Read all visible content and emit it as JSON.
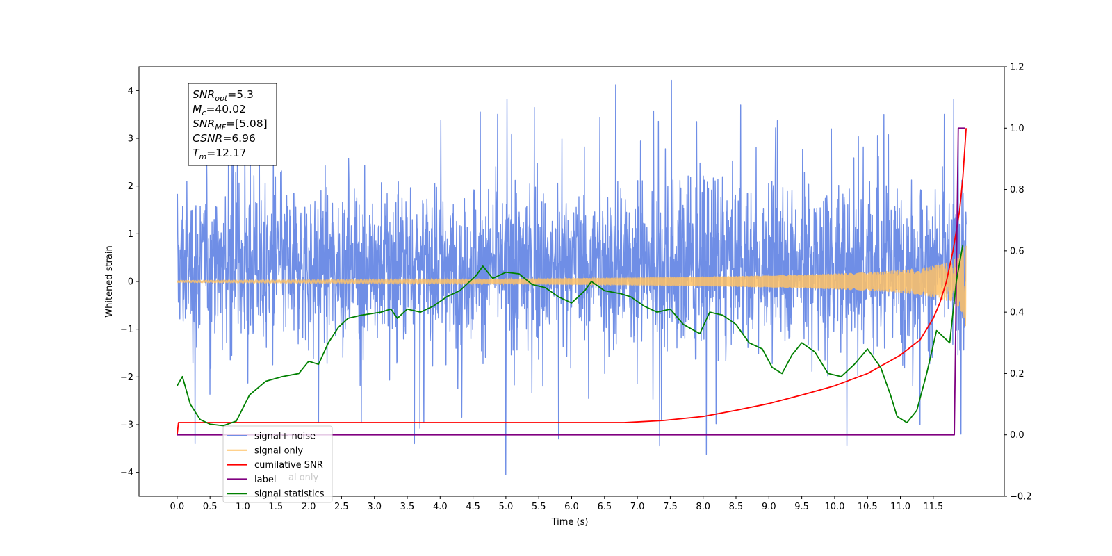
{
  "chart_data": {
    "type": "line",
    "xlabel": "Time (s)",
    "ylabel": "Whitened strain",
    "xlim": [
      -0.58,
      12.58
    ],
    "ylim": [
      -4.5,
      4.5
    ],
    "y2lim": [
      -0.2,
      1.2
    ],
    "x_ticks": [
      0.0,
      0.5,
      1.0,
      1.5,
      2.0,
      2.5,
      3.0,
      3.5,
      4.0,
      4.5,
      5.0,
      5.5,
      6.0,
      6.5,
      7.0,
      7.5,
      8.0,
      8.5,
      9.0,
      9.5,
      10.0,
      10.5,
      11.0,
      11.5
    ],
    "x_tick_labels": [
      "0.0",
      "0.5",
      "1.0",
      "1.5",
      "2.0",
      "2.5",
      "3.0",
      "3.5",
      "4.0",
      "4.5",
      "5.0",
      "5.5",
      "6.0",
      "6.5",
      "7.0",
      "7.5",
      "8.0",
      "8.5",
      "9.0",
      "9.5",
      "10.0",
      "10.5",
      "11.0",
      "11.5"
    ],
    "y_ticks": [
      4,
      3,
      2,
      1,
      0,
      -1,
      -2,
      -3,
      -4
    ],
    "y_tick_labels": [
      "4",
      "3",
      "2",
      "1",
      "0",
      "−1",
      "−2",
      "−3",
      "−4"
    ],
    "y2_ticks": [
      1.2,
      1.0,
      0.8,
      0.6,
      0.4,
      0.2,
      0.0,
      -0.2
    ],
    "y2_tick_labels": [
      "1.2",
      "1.0",
      "0.8",
      "0.6",
      "0.4",
      "0.2",
      "0.0",
      "−0.2"
    ],
    "grid": false,
    "legend_position": "bottom-left",
    "legend": [
      {
        "label": "signal+ noise",
        "color": "#6f8ee6"
      },
      {
        "label": "signal only",
        "color": "#ffc266"
      },
      {
        "label": "cumilative SNR",
        "color": "#ff0000"
      },
      {
        "label": "label",
        "color": "#800080"
      },
      {
        "label": "signal statistics",
        "color": "#008000"
      }
    ],
    "legend_overlap_text": "al only",
    "annotation": {
      "lines": [
        {
          "main": "SNR",
          "sub": "opt",
          "rest": "=5.3"
        },
        {
          "main": "M",
          "sub": "c",
          "rest": "=40.02"
        },
        {
          "main": "SNR",
          "sub": "MF",
          "rest": "=[5.08]"
        },
        {
          "main": "CSNR",
          "sub": "",
          "rest": "=6.96"
        },
        {
          "main": "T",
          "sub": "m",
          "rest": "=12.17"
        }
      ]
    },
    "series": [
      {
        "name": "signal+ noise",
        "axis": "left",
        "color": "#6f8ee6",
        "style": "noise",
        "x_range": [
          0.0,
          12.0
        ],
        "typical_range": [
          -1.5,
          2.2
        ],
        "spikes": [
          {
            "x": 0.27,
            "y": -3.4
          },
          {
            "x": 4.61,
            "y": 3.55
          },
          {
            "x": 5.0,
            "y": -4.05
          },
          {
            "x": 6.67,
            "y": 4.12
          },
          {
            "x": 5.8,
            "y": -3.3
          },
          {
            "x": 8.05,
            "y": -3.62
          },
          {
            "x": 8.57,
            "y": 3.7
          },
          {
            "x": 10.75,
            "y": 3.5
          },
          {
            "x": 11.92,
            "y": -3.2
          },
          {
            "x": 2.15,
            "y": -2.95
          },
          {
            "x": 3.75,
            "y": -2.95
          },
          {
            "x": 9.95,
            "y": 3.2
          },
          {
            "x": 1.25,
            "y": 2.95
          },
          {
            "x": 7.9,
            "y": 3.35
          },
          {
            "x": 11.3,
            "y": -3.0
          }
        ]
      },
      {
        "name": "signal only",
        "axis": "left",
        "color": "#ffc266",
        "style": "chirp",
        "x_range": [
          0.0,
          12.0
        ],
        "amplitude_start": 0.02,
        "amplitude_end": 1.05
      },
      {
        "name": "cumilative SNR",
        "axis": "right",
        "color": "#ff0000",
        "x": [
          0.0,
          0.02,
          5.0,
          6.8,
          7.4,
          8.0,
          8.5,
          9.0,
          9.5,
          10.0,
          10.5,
          11.0,
          11.3,
          11.5,
          11.6,
          11.7,
          11.8,
          11.9,
          11.95,
          12.0
        ],
        "y": [
          0.0,
          0.04,
          0.04,
          0.04,
          0.047,
          0.06,
          0.08,
          0.102,
          0.13,
          0.16,
          0.2,
          0.26,
          0.31,
          0.38,
          0.43,
          0.5,
          0.6,
          0.73,
          0.84,
          1.0
        ]
      },
      {
        "name": "label",
        "axis": "right",
        "color": "#800080",
        "x": [
          0.0,
          11.82,
          11.88,
          11.98
        ],
        "y": [
          0.0,
          0.0,
          1.0,
          1.0
        ]
      },
      {
        "name": "signal statistics",
        "axis": "right",
        "color": "#008000",
        "x": [
          0.0,
          0.08,
          0.2,
          0.35,
          0.5,
          0.7,
          0.9,
          1.1,
          1.35,
          1.6,
          1.85,
          2.0,
          2.15,
          2.3,
          2.45,
          2.6,
          2.8,
          2.95,
          3.1,
          3.25,
          3.35,
          3.5,
          3.7,
          3.9,
          4.1,
          4.3,
          4.45,
          4.55,
          4.65,
          4.8,
          5.0,
          5.2,
          5.4,
          5.6,
          5.8,
          6.0,
          6.2,
          6.3,
          6.5,
          6.75,
          6.9,
          7.1,
          7.3,
          7.5,
          7.7,
          7.95,
          8.1,
          8.3,
          8.5,
          8.7,
          8.9,
          9.05,
          9.2,
          9.35,
          9.5,
          9.7,
          9.9,
          10.1,
          10.3,
          10.5,
          10.7,
          10.85,
          10.95,
          11.1,
          11.25,
          11.4,
          11.55,
          11.75,
          11.85,
          11.95
        ],
        "y": [
          0.16,
          0.19,
          0.1,
          0.05,
          0.035,
          0.03,
          0.045,
          0.13,
          0.175,
          0.19,
          0.2,
          0.24,
          0.23,
          0.3,
          0.35,
          0.38,
          0.39,
          0.395,
          0.4,
          0.41,
          0.38,
          0.41,
          0.4,
          0.42,
          0.45,
          0.47,
          0.5,
          0.52,
          0.55,
          0.51,
          0.53,
          0.525,
          0.49,
          0.48,
          0.45,
          0.43,
          0.47,
          0.5,
          0.47,
          0.46,
          0.45,
          0.42,
          0.4,
          0.41,
          0.36,
          0.33,
          0.4,
          0.39,
          0.36,
          0.3,
          0.28,
          0.22,
          0.2,
          0.26,
          0.3,
          0.27,
          0.2,
          0.19,
          0.23,
          0.28,
          0.22,
          0.13,
          0.06,
          0.04,
          0.08,
          0.2,
          0.34,
          0.3,
          0.5,
          0.62
        ]
      }
    ]
  }
}
